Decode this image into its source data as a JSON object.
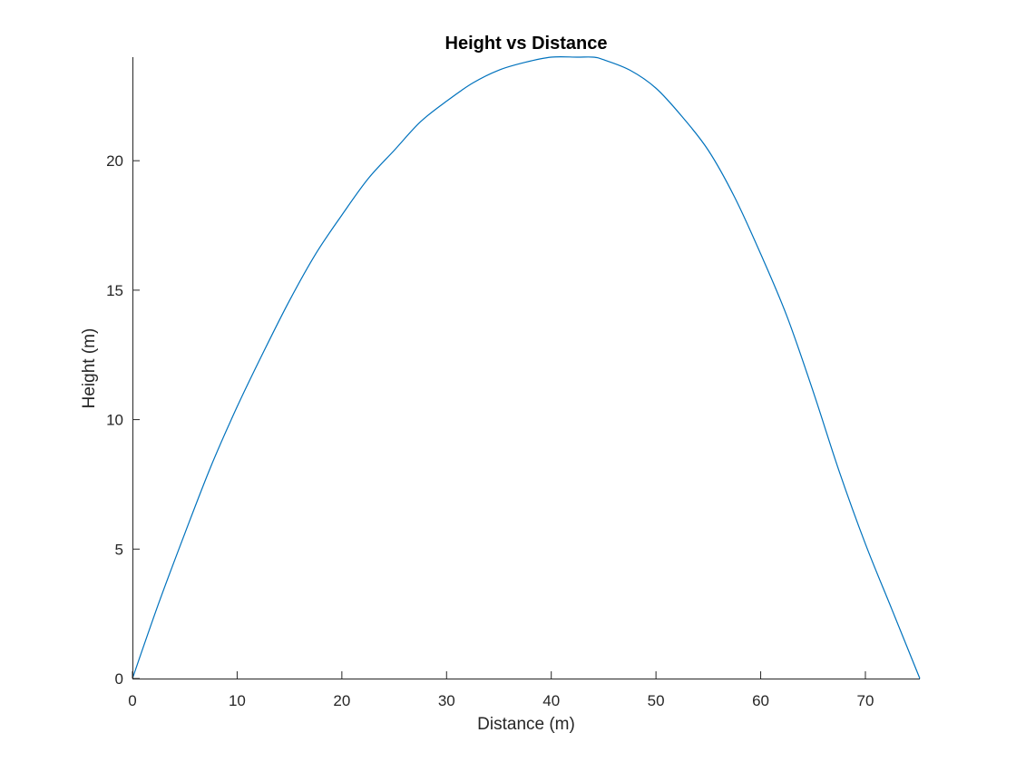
{
  "chart_data": {
    "type": "line",
    "title": "Height vs Distance",
    "xlabel": "Distance (m)",
    "ylabel": "Height (m)",
    "xlim": [
      0,
      75.2
    ],
    "ylim": [
      0,
      24
    ],
    "xticks": [
      0,
      10,
      20,
      30,
      40,
      50,
      60,
      70
    ],
    "yticks": [
      0,
      5,
      10,
      15,
      20
    ],
    "grid": false,
    "series": [
      {
        "color": "#0072BD",
        "x": [
          0,
          2.5,
          5,
          7.5,
          10,
          12.5,
          15,
          17.5,
          20,
          22.5,
          25,
          27.5,
          30,
          32.5,
          35,
          37.5,
          40,
          42.5,
          44,
          45,
          47.5,
          50,
          52.5,
          55,
          57.5,
          60,
          62.5,
          65,
          67.5,
          70,
          72.5,
          75.2
        ],
        "y": [
          0,
          2.9,
          5.6,
          8.2,
          10.5,
          12.6,
          14.6,
          16.4,
          17.9,
          19.3,
          20.4,
          21.5,
          22.3,
          23.0,
          23.5,
          23.8,
          24.0,
          24.0,
          24.0,
          23.9,
          23.5,
          22.8,
          21.7,
          20.4,
          18.6,
          16.4,
          14.0,
          11.1,
          8.0,
          5.2,
          2.7,
          0
        ]
      }
    ]
  }
}
